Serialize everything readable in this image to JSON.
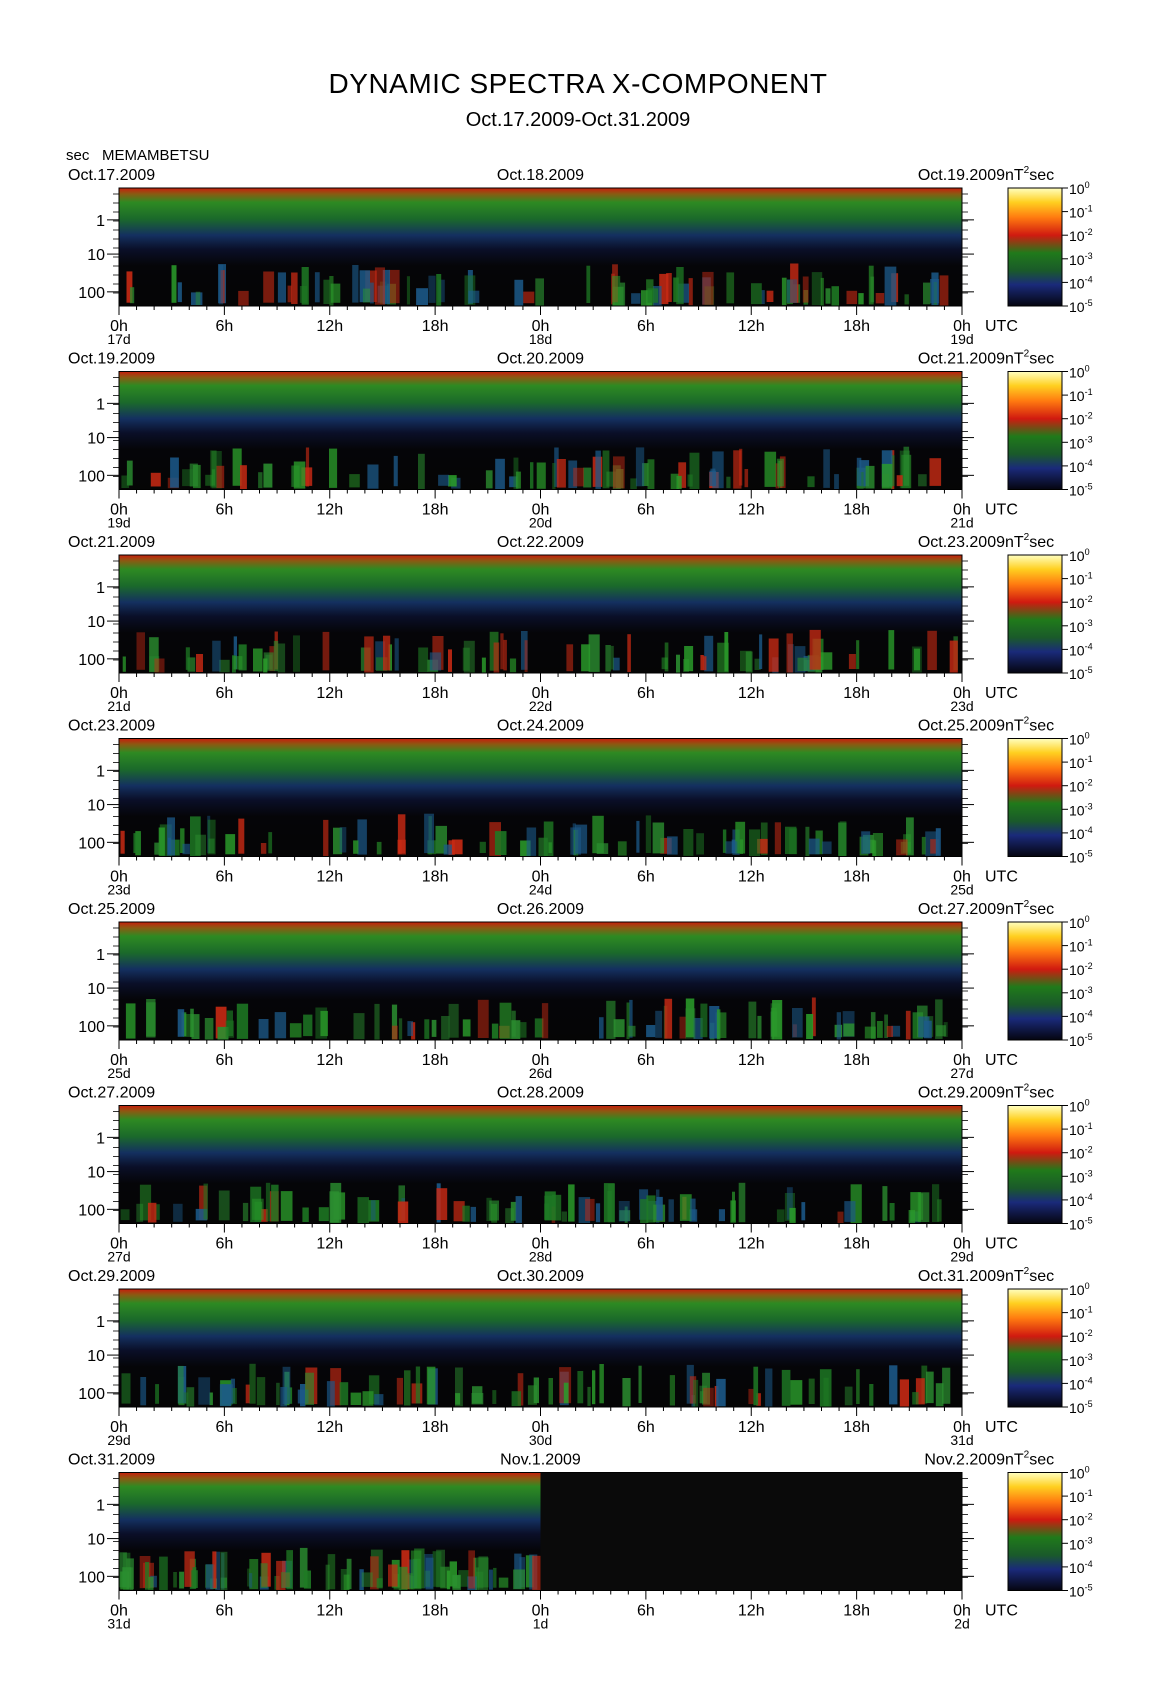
{
  "title": "DYNAMIC SPECTRA X-COMPONENT",
  "subtitle": "Oct.17.2009-Oct.31.2009",
  "unit_label": "sec",
  "station": "MEMAMBETSU",
  "colorbar_unit": "nT",
  "colorbar_unit_exp": "2",
  "colorbar_unit_suffix": "sec",
  "utc_label": "UTC",
  "colors": {
    "background": "#0a0a0a",
    "low_power": "#1a2a8a",
    "mid_power": "#1f8f2a",
    "high_power": "#d92a10",
    "peak_power": "#fff07a"
  },
  "chart_data": {
    "type": "heatmap",
    "quantity": "dynamic spectra X-component",
    "y_axis": {
      "label": "sec",
      "scale": "log",
      "ticks": [
        "1",
        "10",
        "100"
      ]
    },
    "x_axis": {
      "ticks": [
        "0h",
        "6h",
        "12h",
        "18h",
        "0h",
        "6h",
        "12h",
        "18h",
        "0h"
      ]
    },
    "colorbar": {
      "unit": "nT^2 sec",
      "scale": "log",
      "ticks": [
        {
          "base": "10",
          "exp": "0"
        },
        {
          "base": "10",
          "exp": "-1"
        },
        {
          "base": "10",
          "exp": "-2"
        },
        {
          "base": "10",
          "exp": "-3"
        },
        {
          "base": "10",
          "exp": "-4"
        },
        {
          "base": "10",
          "exp": "-5"
        }
      ]
    },
    "panels": [
      {
        "date_left": "Oct.17.2009",
        "date_mid": "Oct.18.2009",
        "date_right": "Oct.19.2009",
        "day_labels": [
          "17d",
          "18d",
          "19d"
        ]
      },
      {
        "date_left": "Oct.19.2009",
        "date_mid": "Oct.20.2009",
        "date_right": "Oct.21.2009",
        "day_labels": [
          "19d",
          "20d",
          "21d"
        ]
      },
      {
        "date_left": "Oct.21.2009",
        "date_mid": "Oct.22.2009",
        "date_right": "Oct.23.2009",
        "day_labels": [
          "21d",
          "22d",
          "23d"
        ]
      },
      {
        "date_left": "Oct.23.2009",
        "date_mid": "Oct.24.2009",
        "date_right": "Oct.25.2009",
        "day_labels": [
          "23d",
          "24d",
          "25d"
        ]
      },
      {
        "date_left": "Oct.25.2009",
        "date_mid": "Oct.26.2009",
        "date_right": "Oct.27.2009",
        "day_labels": [
          "25d",
          "26d",
          "27d"
        ]
      },
      {
        "date_left": "Oct.27.2009",
        "date_mid": "Oct.28.2009",
        "date_right": "Oct.29.2009",
        "day_labels": [
          "27d",
          "28d",
          "29d"
        ]
      },
      {
        "date_left": "Oct.29.2009",
        "date_mid": "Oct.30.2009",
        "date_right": "Oct.31.2009",
        "day_labels": [
          "29d",
          "30d",
          "31d"
        ]
      },
      {
        "date_left": "Oct.31.2009",
        "date_mid": "Nov.1.2009",
        "date_right": "Nov.2.2009",
        "day_labels": [
          "31d",
          "1d",
          "2d"
        ],
        "data_until_hour": 24
      }
    ]
  }
}
